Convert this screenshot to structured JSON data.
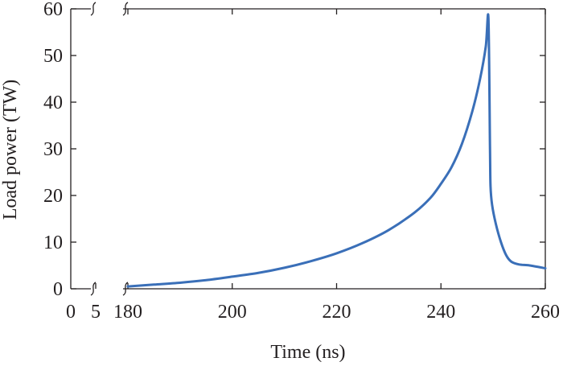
{
  "chart_data": {
    "type": "line",
    "title": "",
    "xlabel": "Time (ns)",
    "ylabel": "Load power (TW)",
    "xlim": [
      180,
      260
    ],
    "ylim": [
      0,
      60
    ],
    "broken_axis": true,
    "x_break_ticks": [
      "0",
      "5"
    ],
    "x_ticks": [
      180,
      200,
      220,
      240,
      260
    ],
    "y_ticks": [
      0,
      10,
      20,
      30,
      40,
      50,
      60
    ],
    "grid": false,
    "legend": "none",
    "series": [
      {
        "color": "#3a6fb8",
        "points": [
          [
            180,
            0.5
          ],
          [
            185,
            0.9
          ],
          [
            190,
            1.3
          ],
          [
            195,
            1.85
          ],
          [
            200,
            2.6
          ],
          [
            205,
            3.4
          ],
          [
            210,
            4.5
          ],
          [
            215,
            5.9
          ],
          [
            220,
            7.6
          ],
          [
            225,
            9.8
          ],
          [
            230,
            12.6
          ],
          [
            235,
            16.4
          ],
          [
            238,
            19.5
          ],
          [
            240,
            22.5
          ],
          [
            242,
            26.0
          ],
          [
            244,
            31.0
          ],
          [
            246,
            38.0
          ],
          [
            247.5,
            45.0
          ],
          [
            248.6,
            52.0
          ],
          [
            249.1,
            58.0
          ],
          [
            249.4,
            30.0
          ],
          [
            249.5,
            22.0
          ],
          [
            249.8,
            18.0
          ],
          [
            250.5,
            14.0
          ],
          [
            251.5,
            10.0
          ],
          [
            252.5,
            7.2
          ],
          [
            253.5,
            5.8
          ],
          [
            255,
            5.2
          ],
          [
            257,
            5.0
          ],
          [
            260,
            4.4
          ]
        ]
      }
    ]
  }
}
